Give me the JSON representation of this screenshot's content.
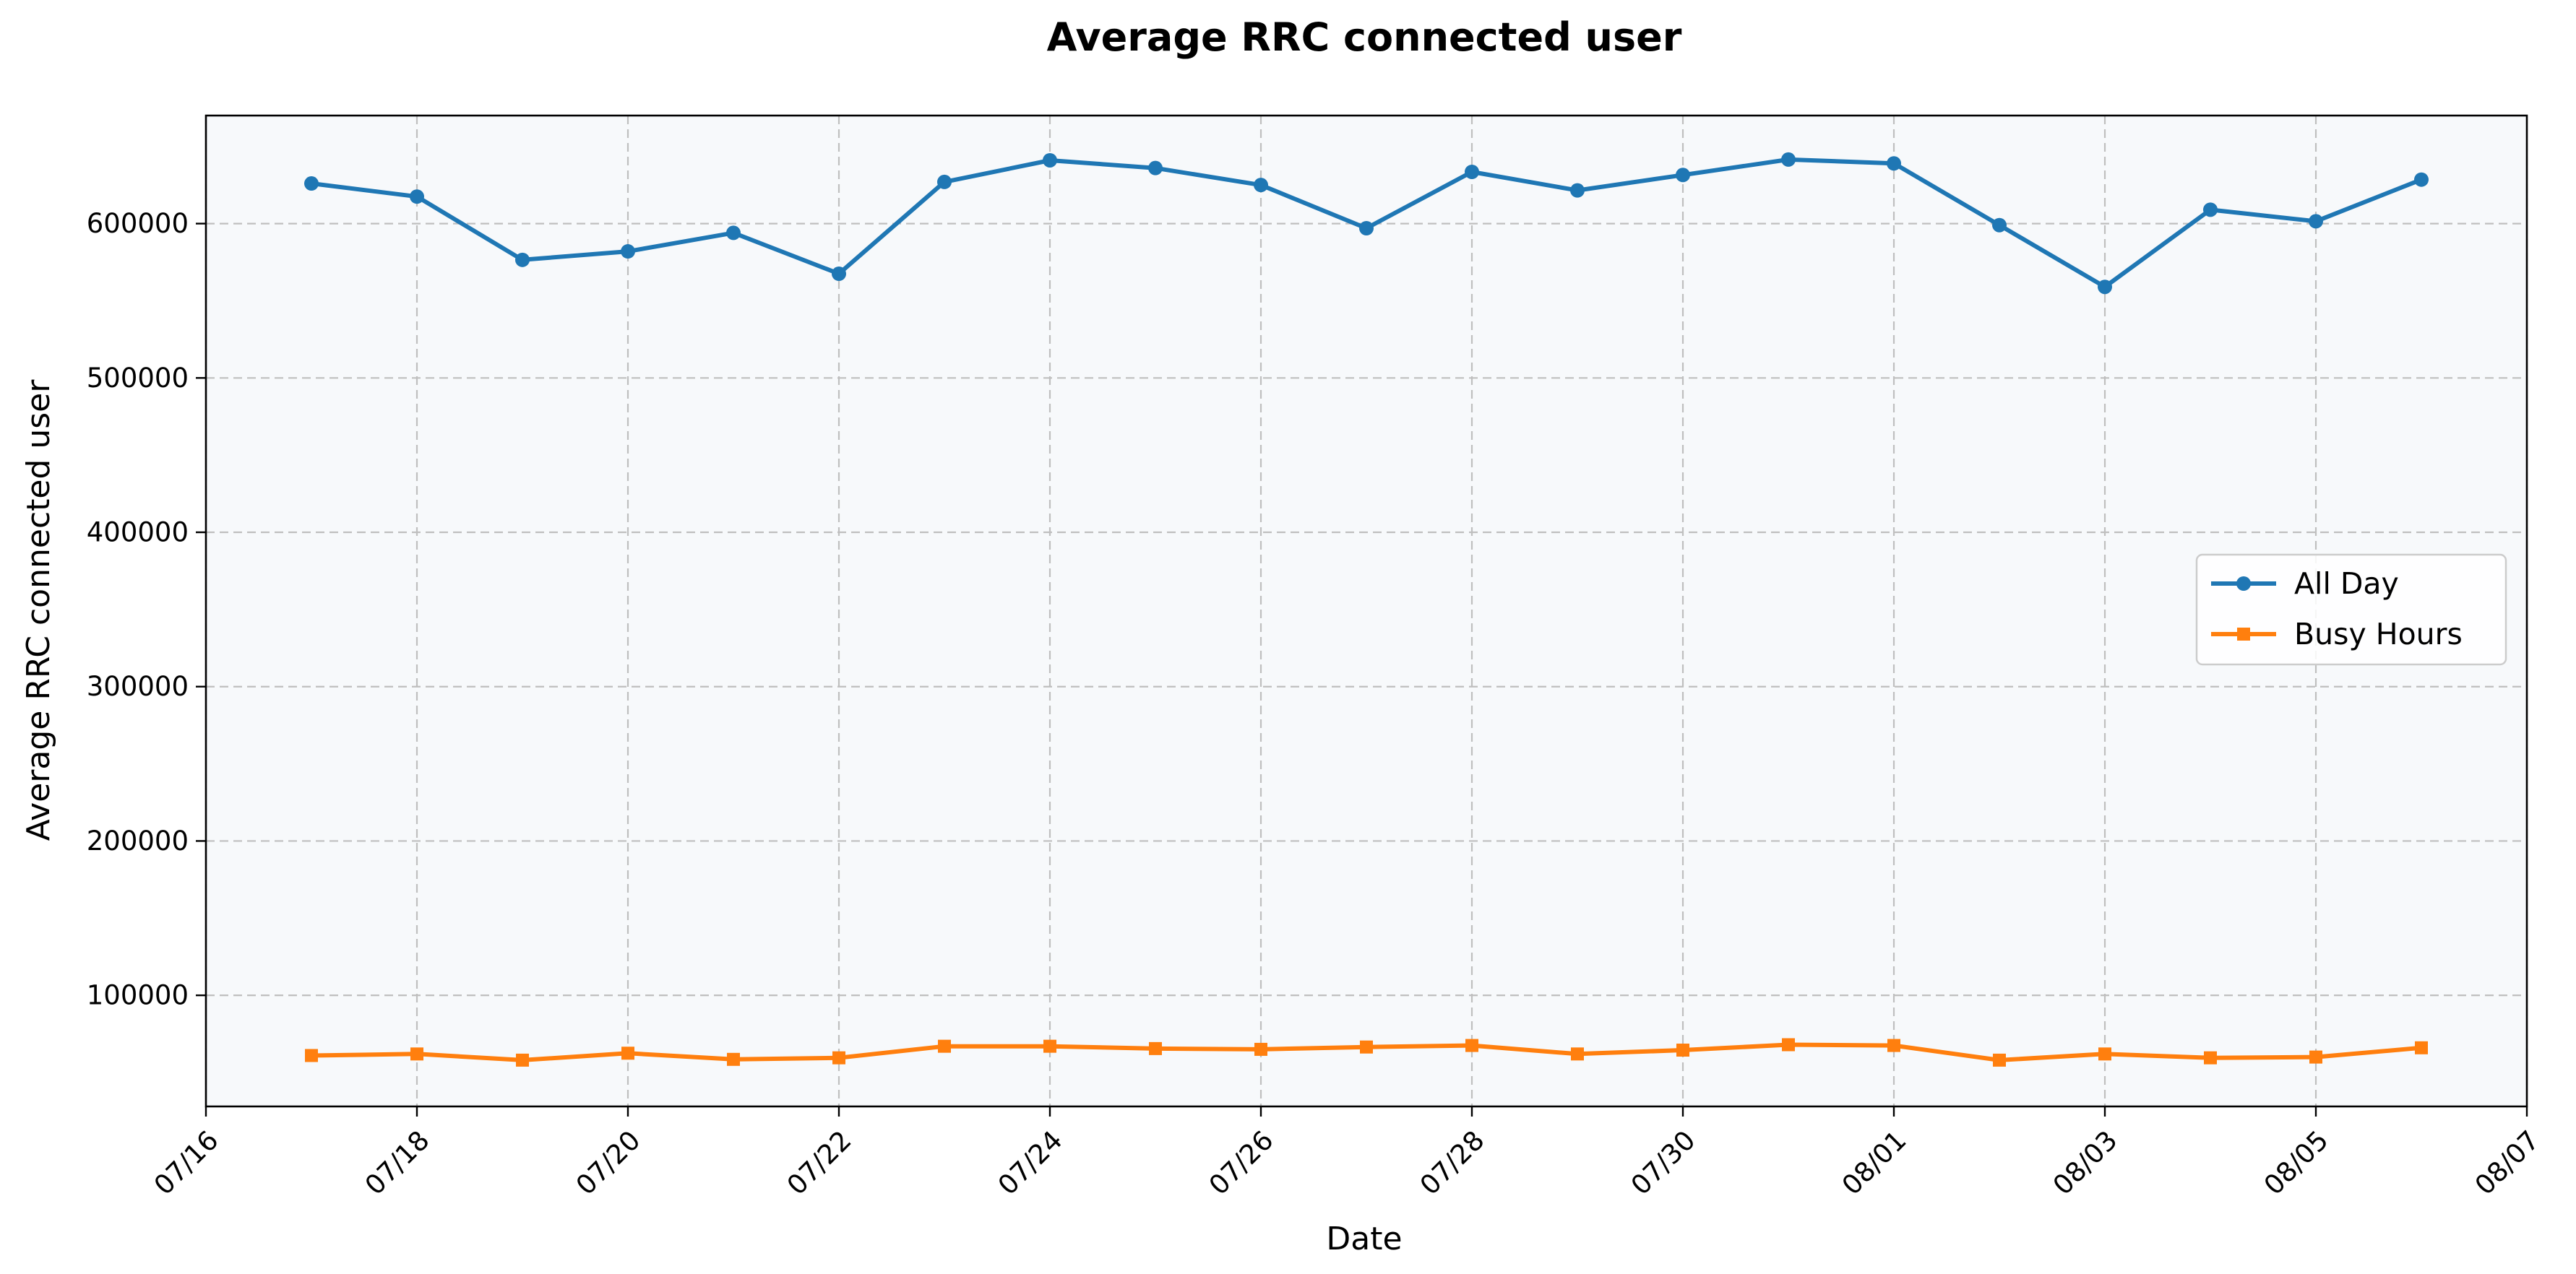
{
  "chart_data": {
    "type": "line",
    "title": "Average RRC connected user",
    "xlabel": "Date",
    "ylabel": "Average RRC connected user",
    "x": [
      "07/17",
      "07/18",
      "07/19",
      "07/20",
      "07/21",
      "07/22",
      "07/23",
      "07/24",
      "07/25",
      "07/26",
      "07/27",
      "07/28",
      "07/29",
      "07/30",
      "07/31",
      "08/01",
      "08/02",
      "08/03",
      "08/04",
      "08/05",
      "08/06"
    ],
    "x_ticks": [
      "07/16",
      "07/18",
      "07/20",
      "07/22",
      "07/24",
      "07/26",
      "07/28",
      "07/30",
      "08/01",
      "08/03",
      "08/05",
      "08/07"
    ],
    "xlim": [
      "07/16",
      "08/07"
    ],
    "y_ticks": [
      100000,
      200000,
      300000,
      400000,
      500000,
      600000
    ],
    "ylim": [
      28000,
      670000
    ],
    "grid": true,
    "legend_position": "center-right",
    "background_color": "#f7f9fb",
    "series": [
      {
        "name": "All Day",
        "color": "#1f77b4",
        "marker": "circle",
        "values": [
          626000,
          617500,
          576500,
          582000,
          594000,
          567500,
          627000,
          641000,
          636000,
          625000,
          597000,
          633500,
          621500,
          631500,
          641500,
          639000,
          599000,
          559000,
          609000,
          601500,
          628500
        ]
      },
      {
        "name": "Busy Hours",
        "color": "#ff7f0e",
        "marker": "square",
        "values": [
          61000,
          62000,
          58000,
          62500,
          58500,
          59500,
          67000,
          67000,
          65500,
          65000,
          66500,
          67500,
          62000,
          64500,
          68000,
          67500,
          58000,
          62000,
          59500,
          60000,
          66000
        ]
      }
    ]
  }
}
